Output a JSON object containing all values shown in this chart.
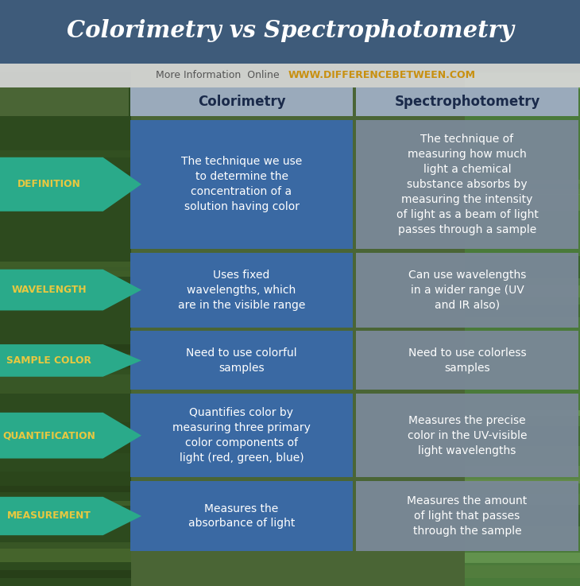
{
  "title": "Colorimetry vs Spectrophotometry",
  "subtitle_plain": "More Information  Online  ",
  "subtitle_url": "WWW.DIFFERENCEBETWEEN.COM",
  "header_col1": "Colorimetry",
  "header_col2": "Spectrophotometry",
  "rows": [
    {
      "label": "DEFINITION",
      "col1": "The technique we use\nto determine the\nconcentration of a\nsolution having color",
      "col2": "The technique of\nmeasuring how much\nlight a chemical\nsubstance absorbs by\nmeasuring the intensity\nof light as a beam of light\npasses through a sample"
    },
    {
      "label": "WAVELENGTH",
      "col1": "Uses fixed\nwavelengths, which\nare in the visible range",
      "col2": "Can use wavelengths\nin a wider range (UV\nand IR also)"
    },
    {
      "label": "SAMPLE COLOR",
      "col1": "Need to use colorful\nsamples",
      "col2": "Need to use colorless\nsamples"
    },
    {
      "label": "QUANTIFICATION",
      "col1": "Quantifies color by\nmeasuring three primary\ncolor components of\nlight (red, green, blue)",
      "col2": "Measures the precise\ncolor in the UV-visible\nlight wavelengths"
    },
    {
      "label": "MEASUREMENT",
      "col1": "Measures the\nabsorbance of light",
      "col2": "Measures the amount\nof light that passes\nthrough the sample"
    }
  ],
  "colors": {
    "title_bg": "#3d5a82",
    "title_text": "#ffffff",
    "subtitle_bg": "#d8d8d8",
    "subtitle_plain": "#555555",
    "subtitle_url": "#c89010",
    "header_bg": "#9aaabb",
    "header_text": "#1a2a4a",
    "label_bg": "#2aaa8a",
    "label_text": "#e8c840",
    "col1_bg": "#3a6aaa",
    "col2_bg": "#7a8898",
    "cell_text": "#ffffff",
    "bg_color": "#4a6535",
    "gap_color": "#3a5228"
  },
  "fig_w": 7.3,
  "fig_h": 7.37,
  "dpi": 100
}
